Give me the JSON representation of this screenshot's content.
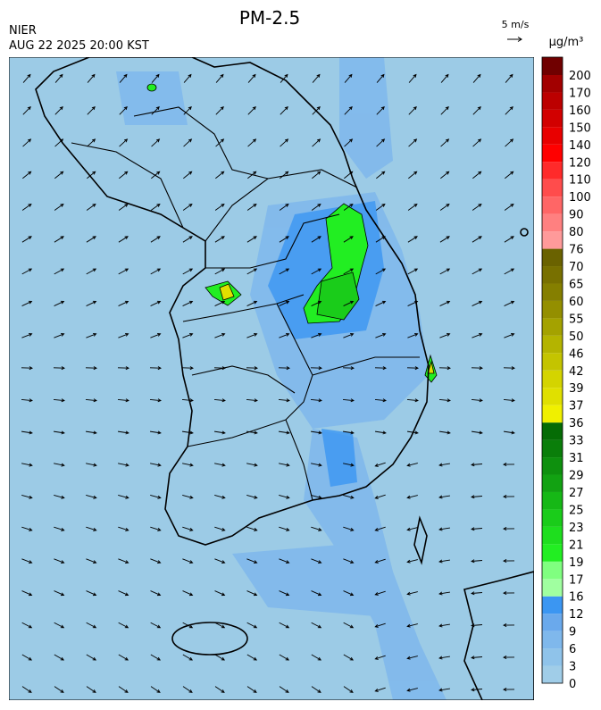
{
  "header": {
    "title": "PM-2.5",
    "agency": "NIER",
    "timestamp": "AUG 22 2025 20:00 KST",
    "wind_scale": "5 m/s"
  },
  "colorbar": {
    "unit": "μg/m³",
    "labels": [
      0,
      3,
      6,
      9,
      12,
      16,
      17,
      19,
      21,
      23,
      25,
      27,
      29,
      31,
      33,
      36,
      37,
      39,
      42,
      46,
      50,
      55,
      60,
      65,
      70,
      76,
      80,
      90,
      100,
      110,
      120,
      140,
      150,
      160,
      170,
      200
    ],
    "colors": [
      "#a0cde8",
      "#8fc3ea",
      "#7fb8ec",
      "#6aa9ec",
      "#3b96f2",
      "#a0ffa0",
      "#80ff80",
      "#22ee22",
      "#1ede1e",
      "#1acc1a",
      "#16b816",
      "#12a212",
      "#0e900e",
      "#0a7e0a",
      "#056c05",
      "#f0f000",
      "#e0e000",
      "#d4d400",
      "#c4c400",
      "#b4b400",
      "#a4a200",
      "#948f00",
      "#857f00",
      "#787000",
      "#6a6200",
      "#ff9a9a",
      "#ff8080",
      "#ff6666",
      "#ff4c4c",
      "#ff2a2a",
      "#ff0000",
      "#e80000",
      "#d20000",
      "#bc0000",
      "#a20000",
      "#700000"
    ]
  }
}
